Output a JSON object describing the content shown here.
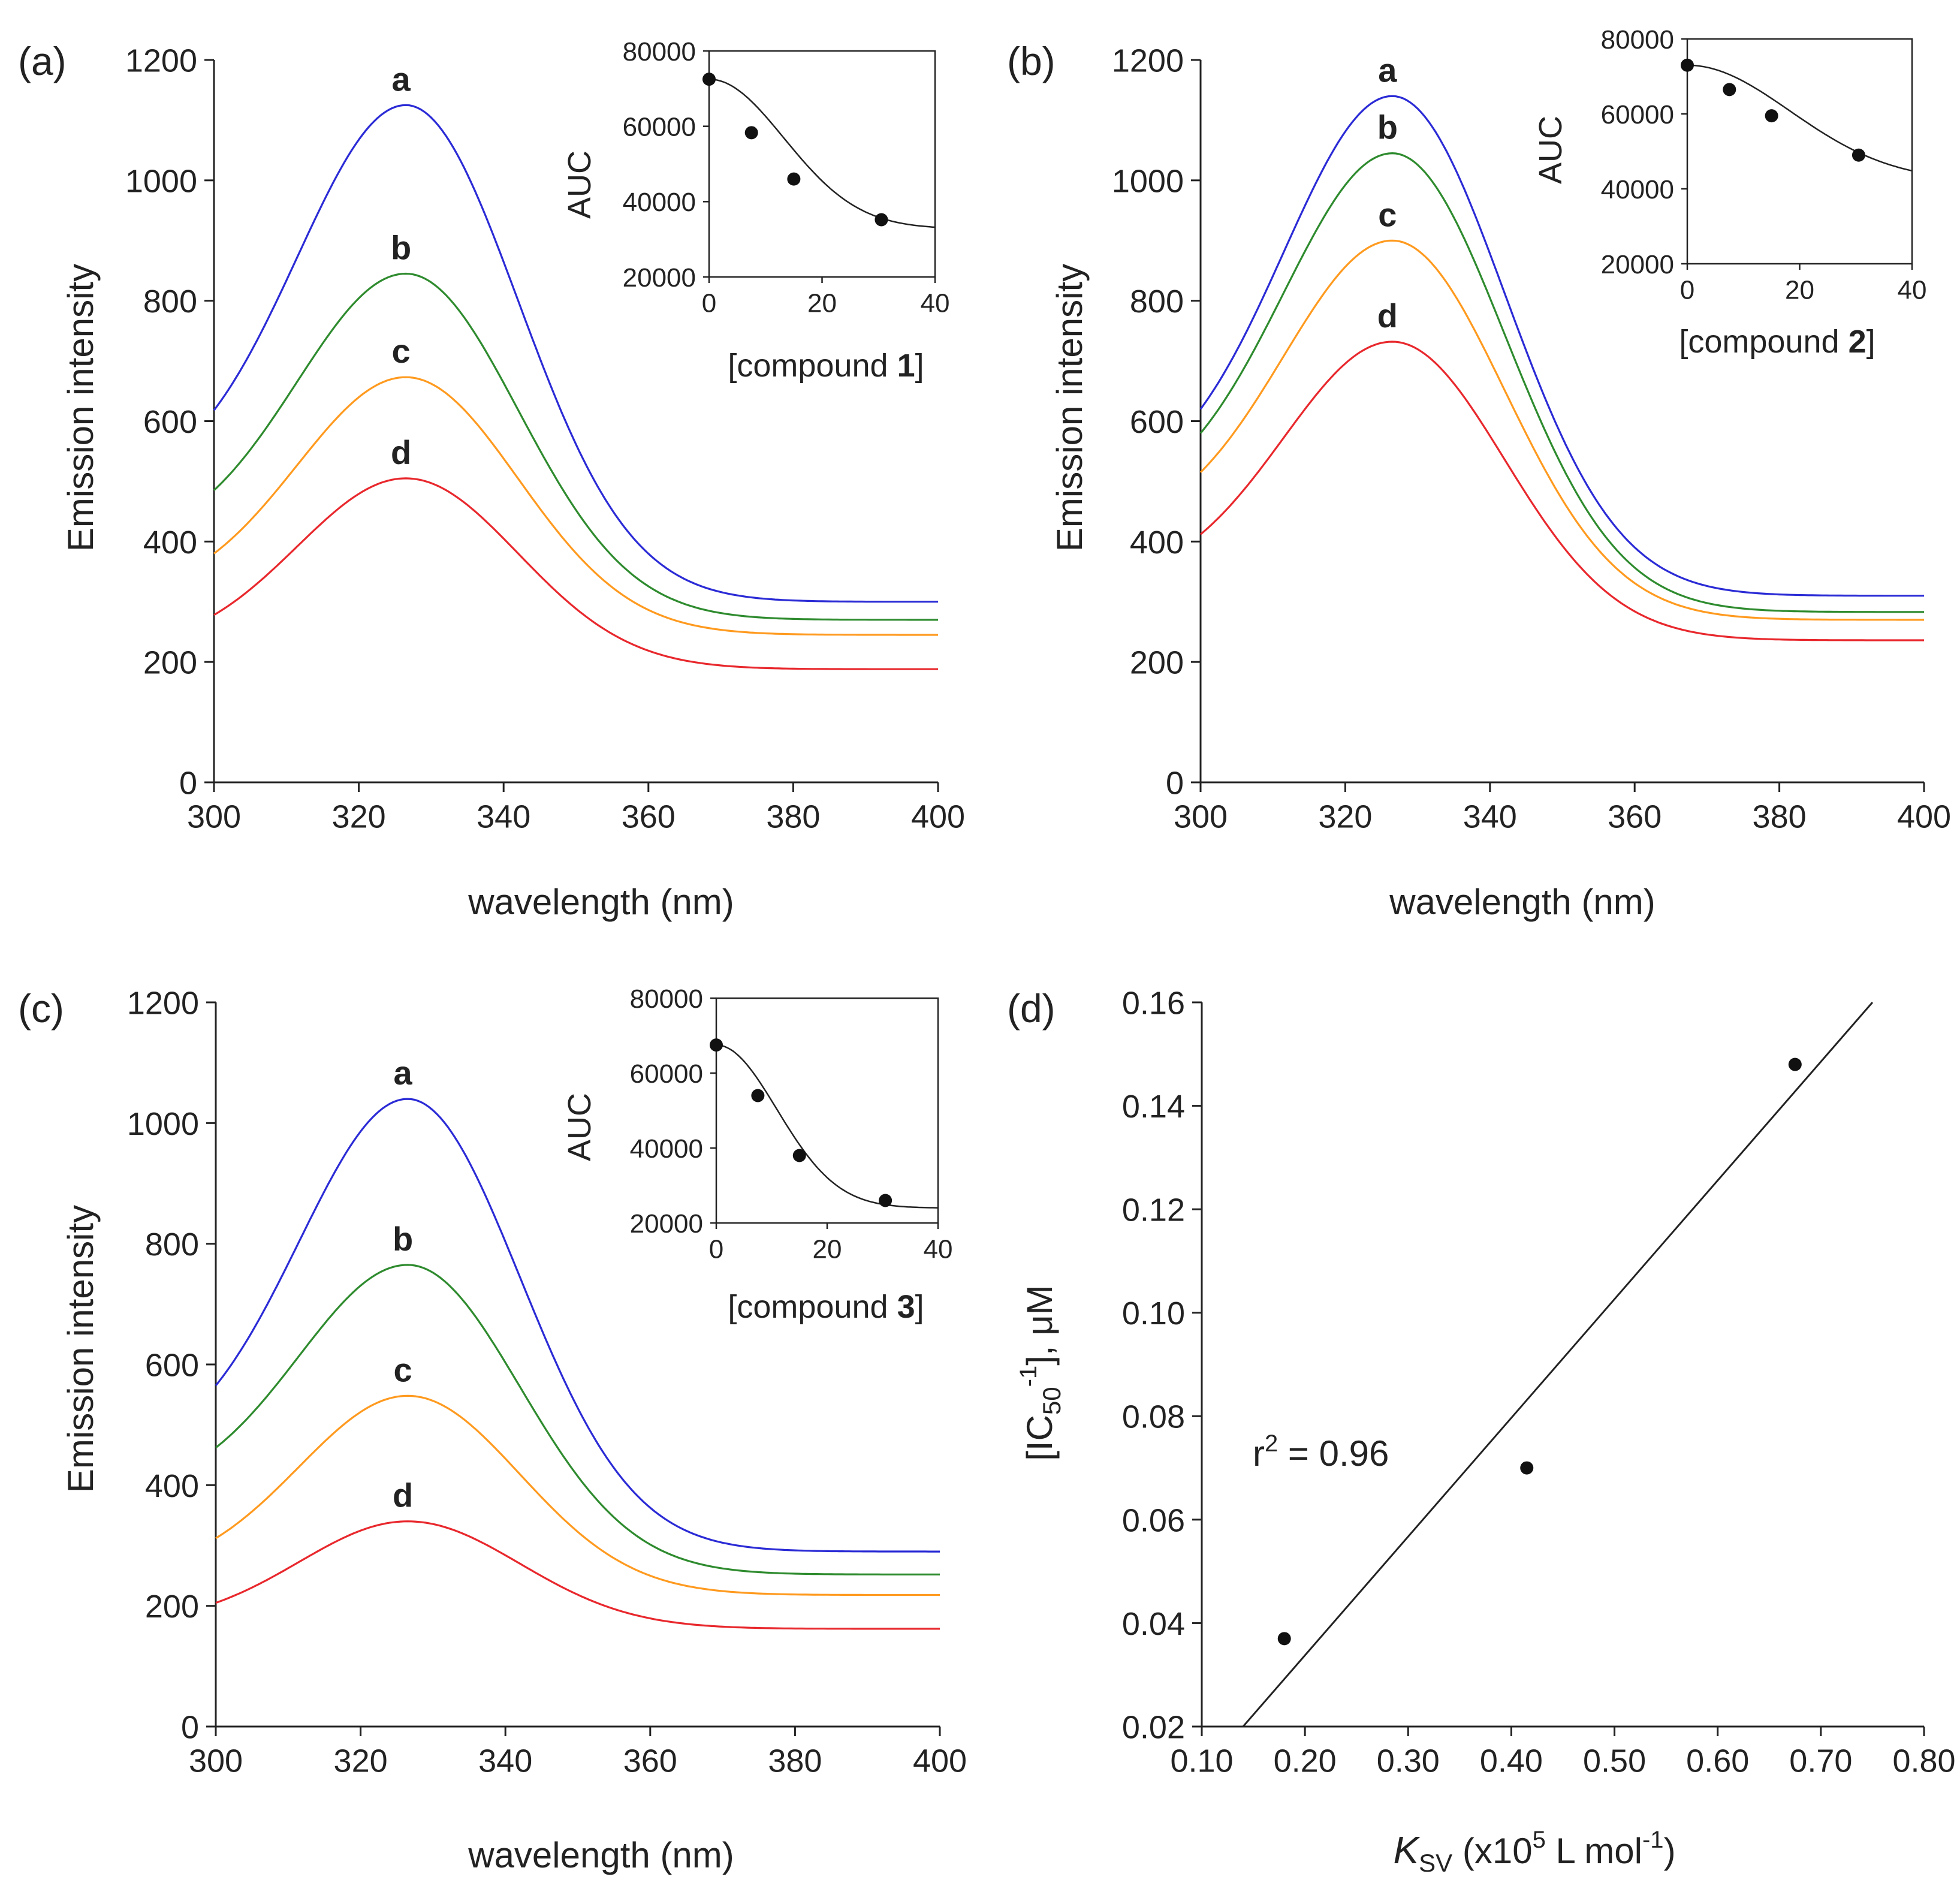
{
  "chart_data": [
    {
      "type": "line",
      "panel_label": "(a)",
      "xlabel": "wavelength (nm)",
      "ylabel": "Emission intensity",
      "xlim": [
        300,
        400
      ],
      "ylim": [
        0,
        1200
      ],
      "xticks": [
        300,
        320,
        340,
        360,
        380,
        400
      ],
      "yticks": [
        0,
        200,
        400,
        600,
        800,
        1000,
        1200
      ],
      "series": [
        {
          "name": "a",
          "color": "#2b2bd6",
          "peak_x": 326.5,
          "peak": 1125,
          "start": 618,
          "end": 300,
          "rise_width": 15,
          "fall_width": 15.5
        },
        {
          "name": "b",
          "color": "#2e8b2e",
          "peak_x": 326.5,
          "peak": 845,
          "start": 485,
          "end": 270,
          "rise_width": 15,
          "fall_width": 15.5
        },
        {
          "name": "c",
          "color": "#ff9a1f",
          "peak_x": 326.5,
          "peak": 673,
          "start": 380,
          "end": 245,
          "rise_width": 15,
          "fall_width": 15.5
        },
        {
          "name": "d",
          "color": "#e8282d",
          "peak_x": 326.5,
          "peak": 505,
          "start": 278,
          "end": 188,
          "rise_width": 15,
          "fall_width": 15.5
        }
      ],
      "inset": {
        "type": "scatter",
        "ylabel": "AUC",
        "xlabel_prefix": "[compound ",
        "xlabel_bold": "1",
        "xlabel_suffix": "]",
        "xlim": [
          0,
          40
        ],
        "ylim": [
          20000,
          80000
        ],
        "xticks": [
          0,
          20,
          40
        ],
        "yticks": [
          20000,
          40000,
          60000,
          80000
        ],
        "points": [
          {
            "x": 0,
            "y": 72500
          },
          {
            "x": 7.5,
            "y": 58300
          },
          {
            "x": 15,
            "y": 46000
          },
          {
            "x": 30.5,
            "y": 35200
          }
        ],
        "fit": {
          "plateau": 32800,
          "amp": 39700,
          "k": 0.00285
        }
      }
    },
    {
      "type": "line",
      "panel_label": "(b)",
      "xlabel": "wavelength (nm)",
      "ylabel": "Emission intensity",
      "xlim": [
        300,
        400
      ],
      "ylim": [
        0,
        1200
      ],
      "xticks": [
        300,
        320,
        340,
        360,
        380,
        400
      ],
      "yticks": [
        0,
        200,
        400,
        600,
        800,
        1000,
        1200
      ],
      "series": [
        {
          "name": "a",
          "color": "#2b2bd6",
          "peak_x": 326.5,
          "peak": 1140,
          "start": 620,
          "end": 310,
          "rise_width": 15,
          "fall_width": 15.5
        },
        {
          "name": "b",
          "color": "#2e8b2e",
          "peak_x": 326.5,
          "peak": 1045,
          "start": 580,
          "end": 283,
          "rise_width": 15,
          "fall_width": 15.5
        },
        {
          "name": "c",
          "color": "#ff9a1f",
          "peak_x": 326.5,
          "peak": 900,
          "start": 515,
          "end": 270,
          "rise_width": 15,
          "fall_width": 15.5
        },
        {
          "name": "d",
          "color": "#e8282d",
          "peak_x": 326.5,
          "peak": 732,
          "start": 412,
          "end": 236,
          "rise_width": 15,
          "fall_width": 15.5
        }
      ],
      "inset": {
        "type": "scatter",
        "ylabel": "AUC",
        "xlabel_prefix": "[compound ",
        "xlabel_bold": "2",
        "xlabel_suffix": "]",
        "xlim": [
          0,
          40
        ],
        "ylim": [
          20000,
          80000
        ],
        "xticks": [
          0,
          20,
          40
        ],
        "yticks": [
          20000,
          40000,
          60000,
          80000
        ],
        "points": [
          {
            "x": 0,
            "y": 73000
          },
          {
            "x": 7.5,
            "y": 66500
          },
          {
            "x": 15,
            "y": 59500
          },
          {
            "x": 30.5,
            "y": 49000
          }
        ],
        "fit": {
          "plateau": 42000,
          "amp": 31000,
          "k": 0.0015
        }
      }
    },
    {
      "type": "line",
      "panel_label": "(c)",
      "xlabel": "wavelength (nm)",
      "ylabel": "Emission intensity",
      "xlim": [
        300,
        400
      ],
      "ylim": [
        0,
        1200
      ],
      "xticks": [
        300,
        320,
        340,
        360,
        380,
        400
      ],
      "yticks": [
        0,
        200,
        400,
        600,
        800,
        1000,
        1200
      ],
      "series": [
        {
          "name": "a",
          "color": "#2b2bd6",
          "peak_x": 326.5,
          "peak": 1040,
          "start": 565,
          "end": 290,
          "rise_width": 15,
          "fall_width": 15.5
        },
        {
          "name": "b",
          "color": "#2e8b2e",
          "peak_x": 326.5,
          "peak": 765,
          "start": 462,
          "end": 252,
          "rise_width": 15,
          "fall_width": 15.5
        },
        {
          "name": "c",
          "color": "#ff9a1f",
          "peak_x": 326.5,
          "peak": 548,
          "start": 312,
          "end": 218,
          "rise_width": 15,
          "fall_width": 15.5
        },
        {
          "name": "d",
          "color": "#e8282d",
          "peak_x": 326.5,
          "peak": 340,
          "start": 205,
          "end": 162,
          "rise_width": 15,
          "fall_width": 15.5
        }
      ],
      "inset": {
        "type": "scatter",
        "ylabel": "AUC",
        "xlabel_prefix": "[compound ",
        "xlabel_bold": "3",
        "xlabel_suffix": "]",
        "xlim": [
          0,
          40
        ],
        "ylim": [
          20000,
          80000
        ],
        "xticks": [
          0,
          20,
          40
        ],
        "yticks": [
          20000,
          40000,
          60000,
          80000
        ],
        "points": [
          {
            "x": 0,
            "y": 67500
          },
          {
            "x": 7.5,
            "y": 54000
          },
          {
            "x": 15,
            "y": 38000
          },
          {
            "x": 30.5,
            "y": 26000
          }
        ],
        "fit": {
          "plateau": 24000,
          "amp": 43500,
          "k": 0.0042
        }
      }
    },
    {
      "type": "scatter",
      "panel_label": "(d)",
      "xlabel_italic": "K",
      "xlabel_sub": "SV",
      "xlabel_mid": " (x10",
      "xlabel_sup": "5",
      "xlabel_tail": " L mol",
      "xlabel_sup2": "-1",
      "xlabel_end": ")",
      "ylabel_pre": "[IC",
      "ylabel_sub": "50",
      "ylabel_sup": "-1",
      "ylabel_post": "], μM",
      "xlim": [
        0.1,
        0.8
      ],
      "ylim": [
        0.02,
        0.16
      ],
      "xticks": [
        0.1,
        0.2,
        0.3,
        0.4,
        0.5,
        0.6,
        0.7,
        0.8
      ],
      "yticks": [
        0.02,
        0.04,
        0.06,
        0.08,
        0.1,
        0.12,
        0.14,
        0.16
      ],
      "points": [
        {
          "x": 0.18,
          "y": 0.037
        },
        {
          "x": 0.415,
          "y": 0.07
        },
        {
          "x": 0.675,
          "y": 0.148
        }
      ],
      "fit_line": {
        "x1": 0.14,
        "y1": 0.02,
        "x2": 0.75,
        "y2": 0.16
      },
      "annotation_pre": "r",
      "annotation_sup": "2",
      "annotation_post": " = 0.96"
    }
  ]
}
